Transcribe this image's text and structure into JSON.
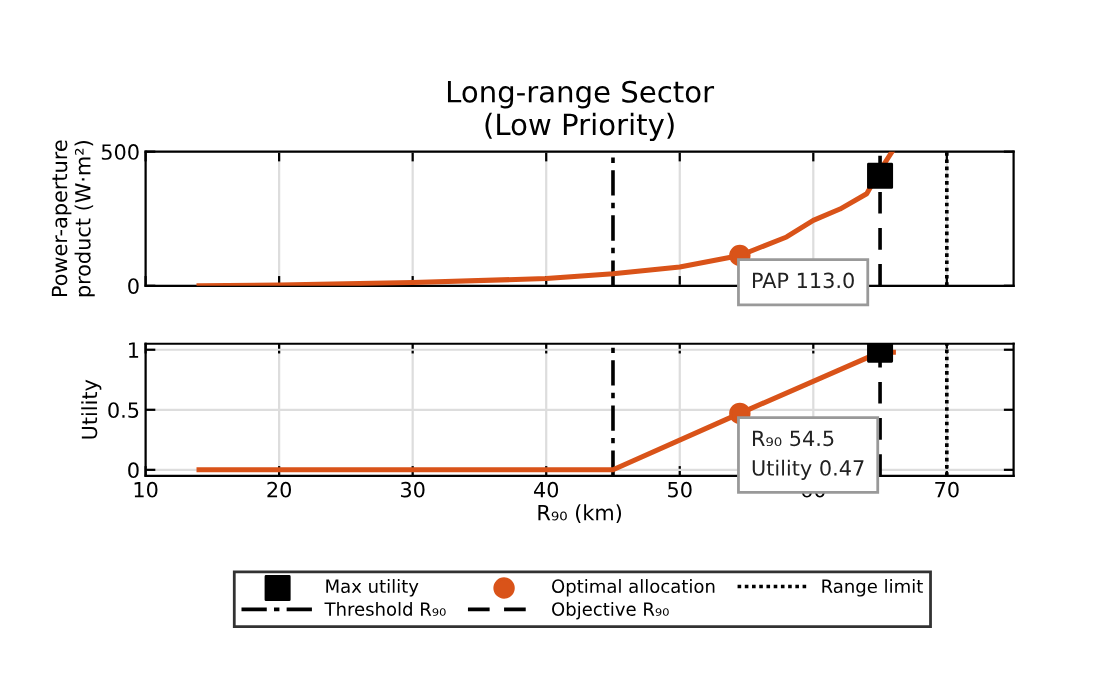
{
  "chart_data": [
    {
      "type": "line",
      "title": "Long-range Sector\n(Low Priority)",
      "ylabel": "Power-aperture\nproduct (W·m²)",
      "xlim": [
        10,
        75
      ],
      "xticks": [
        10,
        20,
        30,
        40,
        50,
        60,
        70
      ],
      "ylim": [
        0,
        500
      ],
      "yticks": [
        0,
        500
      ],
      "tick_labels": "y",
      "grid": true,
      "legend": "bottom",
      "series": [
        {
          "color": "#d95319",
          "x": [
            14,
            20,
            30,
            40,
            45,
            50,
            54.5,
            58,
            60,
            62,
            64,
            65,
            65.9
          ],
          "values": [
            0,
            3,
            12,
            27,
            45,
            70,
            113,
            182,
            244,
            286,
            343,
            430,
            500
          ]
        },
        {
          "type": "scatter",
          "name": "Max utility",
          "marker": "square",
          "color": "#000000",
          "x": [
            65
          ],
          "values": [
            410
          ]
        },
        {
          "type": "scatter",
          "name": "Optimal allocation",
          "marker": "circle",
          "color": "#d95319",
          "x": [
            54.5
          ],
          "values": [
            113
          ]
        }
      ],
      "ref_lines": [
        {
          "axis": "x",
          "value": 45,
          "label": "Threshold R₉₀",
          "line_style": "dashdot",
          "color": "#000000"
        },
        {
          "axis": "x",
          "value": 65,
          "label": "Objective R₉₀",
          "line_style": "dashed",
          "color": "#000000"
        },
        {
          "axis": "x",
          "value": 70,
          "label": "Range limit",
          "line_style": "dotted",
          "color": "#000000"
        }
      ],
      "annotations": [
        {
          "text": "PAP 113.0",
          "x": 54.5,
          "y": 113
        }
      ]
    },
    {
      "type": "line",
      "xlabel": "R₉₀ (km)",
      "ylabel": "Utility",
      "xlim": [
        10,
        75
      ],
      "xticks": [
        10,
        20,
        30,
        40,
        50,
        60,
        70
      ],
      "ylim": [
        -0.05,
        1.05
      ],
      "yticks": [
        0,
        0.5,
        1
      ],
      "grid": true,
      "series": [
        {
          "color": "#d95319",
          "x": [
            14,
            45,
            54.5,
            65,
            66
          ],
          "values": [
            0,
            0,
            0.47,
            0.98,
            0.98
          ]
        },
        {
          "type": "scatter",
          "marker": "square",
          "color": "#000000",
          "x": [
            65
          ],
          "values": [
            1
          ]
        },
        {
          "type": "scatter",
          "marker": "circle",
          "color": "#d95319",
          "x": [
            54.5
          ],
          "values": [
            0.47
          ]
        }
      ],
      "ref_lines": [
        {
          "axis": "x",
          "value": 45,
          "line_style": "dashdot",
          "color": "#000000"
        },
        {
          "axis": "x",
          "value": 65,
          "line_style": "dashed",
          "color": "#000000"
        },
        {
          "axis": "x",
          "value": 70,
          "line_style": "dotted",
          "color": "#000000"
        }
      ],
      "annotations": [
        {
          "text": "R₉₀ 54.5\nUtility 0.47",
          "x": 54.5,
          "y": 0.47
        }
      ]
    }
  ]
}
